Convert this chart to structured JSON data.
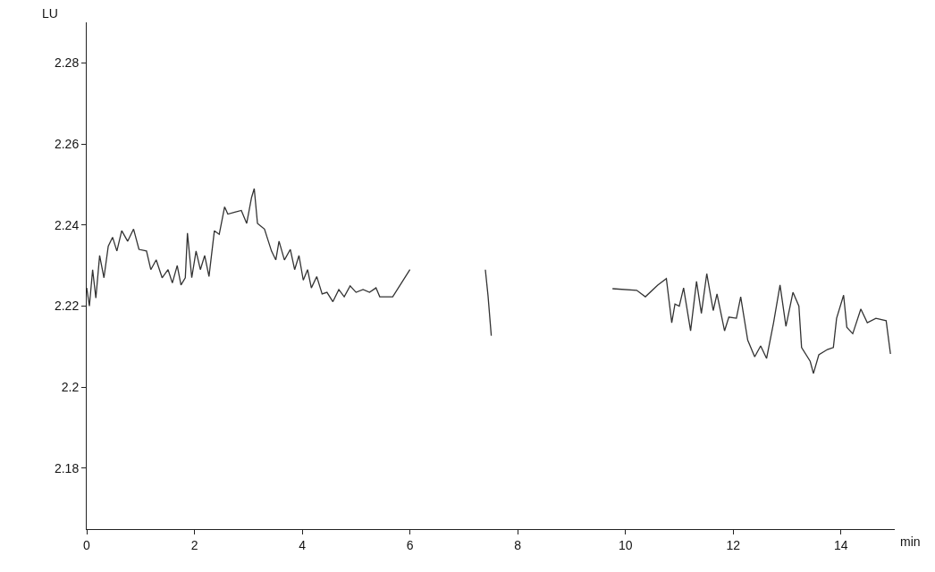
{
  "chart_data": {
    "type": "line",
    "xlabel": "min",
    "ylabel": "LU",
    "x": [
      0,
      0.05,
      0.11,
      0.17,
      0.24,
      0.32,
      0.4,
      0.48,
      0.56,
      0.65,
      0.76,
      0.87,
      0.97,
      1.11,
      1.19,
      1.29,
      1.4,
      1.51,
      1.59,
      1.68,
      1.75,
      1.83,
      1.87,
      1.95,
      2.03,
      2.11,
      2.19,
      2.27,
      2.37,
      2.46,
      2.56,
      2.62,
      2.75,
      2.87,
      2.97,
      3.06,
      3.11,
      3.17,
      3.3,
      3.43,
      3.51,
      3.57,
      3.67,
      3.78,
      3.86,
      3.94,
      4.02,
      4.1,
      4.17,
      4.27,
      4.37,
      4.46,
      4.57,
      4.68,
      4.78,
      4.89,
      5.0,
      5.13,
      5.25,
      5.37,
      5.44,
      5.68,
      6.0,
      6.8,
      7.4,
      7.45,
      7.51,
      8.5,
      9.76,
      10.21,
      10.37,
      10.6,
      10.76,
      10.86,
      10.92,
      11.0,
      11.08,
      11.21,
      11.32,
      11.41,
      11.51,
      11.63,
      11.7,
      11.84,
      11.92,
      12.06,
      12.14,
      12.27,
      12.4,
      12.51,
      12.62,
      12.75,
      12.87,
      12.98,
      13.11,
      13.22,
      13.27,
      13.43,
      13.49,
      13.59,
      13.75,
      13.86,
      13.92,
      14.05,
      14.11,
      14.22,
      14.37,
      14.49,
      14.65,
      14.84,
      14.92
    ],
    "series": [
      {
        "color": "#333333",
        "values": [
          2.2245,
          2.22,
          2.229,
          2.222,
          2.2325,
          2.227,
          2.2348,
          2.237,
          2.2336,
          2.2386,
          2.236,
          2.239,
          2.234,
          2.2336,
          2.229,
          2.2314,
          2.227,
          2.229,
          2.2257,
          2.23,
          2.2252,
          2.227,
          2.238,
          2.227,
          2.2336,
          2.229,
          2.2325,
          2.2273,
          2.2386,
          2.2377,
          2.2445,
          2.2427,
          2.2432,
          2.2436,
          2.2404,
          2.2468,
          2.249,
          2.2404,
          2.239,
          2.2336,
          2.2314,
          2.236,
          2.2314,
          2.234,
          2.229,
          2.2325,
          2.2264,
          2.229,
          2.2245,
          2.2273,
          2.223,
          2.2234,
          2.2211,
          2.2241,
          2.2223,
          2.225,
          2.2234,
          2.2241,
          2.2234,
          2.2245,
          2.2223,
          2.2223,
          2.229,
          null,
          2.229,
          2.2225,
          2.2127,
          null,
          2.2243,
          2.2239,
          2.2223,
          2.2252,
          2.2268,
          2.2159,
          2.2205,
          2.22,
          2.2245,
          2.2139,
          2.2261,
          2.2182,
          2.228,
          2.2189,
          2.223,
          2.2139,
          2.2173,
          2.217,
          2.2223,
          2.2116,
          2.2075,
          2.2102,
          2.2071,
          2.2159,
          2.2252,
          2.215,
          2.2234,
          2.22,
          2.2098,
          2.2064,
          2.2034,
          2.208,
          2.2093,
          2.2098,
          2.217,
          2.2227,
          2.2148,
          2.2132,
          2.2193,
          2.2159,
          2.217,
          2.2164,
          2.2082
        ]
      }
    ],
    "xlim": [
      0,
      15
    ],
    "xticks": [
      0,
      2,
      4,
      6,
      8,
      10,
      12,
      14
    ],
    "ylim": [
      2.165,
      2.29
    ],
    "yticks": [
      2.18,
      2.2,
      2.22,
      2.24,
      2.26,
      2.28
    ],
    "grid": false,
    "legend": false,
    "marker": "none",
    "line_style": "solid"
  }
}
